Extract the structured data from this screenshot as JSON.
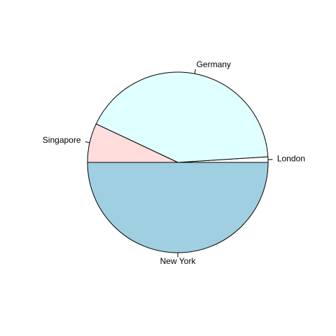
{
  "chart_data": {
    "type": "pie",
    "title": "",
    "categories": [
      "London",
      "Germany",
      "Singapore",
      "New York"
    ],
    "values": [
      1,
      42,
      7,
      50
    ],
    "colors": [
      "#FFFFFF",
      "#E0FFFF",
      "#FFDDDD",
      "#9FCFE0"
    ],
    "start_angle_deg": 0,
    "direction": "counterclockwise"
  }
}
